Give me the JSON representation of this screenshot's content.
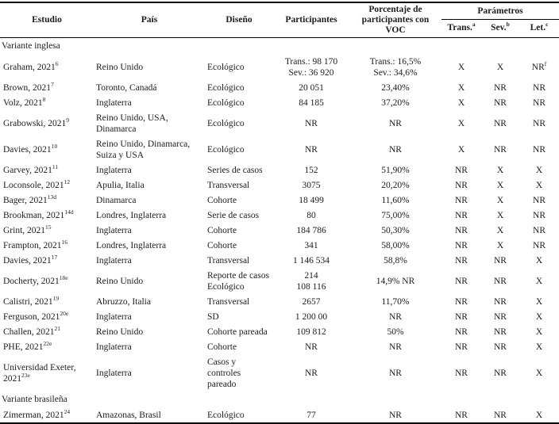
{
  "table": {
    "header": {
      "estudio": "Estudio",
      "pais": "País",
      "diseno": "Diseño",
      "participantes": "Participantes",
      "voc": "Porcentaje de participantes con VOC",
      "parametros": "Parámetros",
      "sub": [
        {
          "label": "Trans.",
          "sup": "a"
        },
        {
          "label": "Sev.",
          "sup": "b"
        },
        {
          "label": "Let.",
          "sup": "c"
        }
      ]
    },
    "sections": [
      {
        "title": "Variante inglesa",
        "rows": [
          {
            "estudio": "Graham, 2021",
            "ref": "6",
            "pais": "Reino Unido",
            "diseno": "Ecológico",
            "participantes": "Trans.: 98 170\nSev.: 36 920",
            "voc": "Trans.: 16,5%\nSev.: 34,6%",
            "trans": "X",
            "sev": "X",
            "let": "NR",
            "let_sup": "f"
          },
          {
            "estudio": "Brown, 2021",
            "ref": "7",
            "pais": "Toronto, Canadá",
            "diseno": "Ecológico",
            "participantes": "20 051",
            "voc": "23,40%",
            "trans": "X",
            "sev": "NR",
            "let": "NR"
          },
          {
            "estudio": "Volz, 2021",
            "ref": "8",
            "pais": "Inglaterra",
            "diseno": "Ecológico",
            "participantes": "84 185",
            "voc": "37,20%",
            "trans": "X",
            "sev": "NR",
            "let": "NR"
          },
          {
            "estudio": "Grabowski, 2021",
            "ref": "9",
            "pais": "Reino Unido, USA,\nDinamarca",
            "diseno": "Ecológico",
            "participantes": "NR",
            "voc": "NR",
            "trans": "X",
            "sev": "NR",
            "let": "NR"
          },
          {
            "estudio": "Davies, 2021",
            "ref": "10",
            "pais": "Reino Unido, Dinamarca,\nSuiza y USA",
            "diseno": "Ecológico",
            "participantes": "NR",
            "voc": "NR",
            "trans": "X",
            "sev": "NR",
            "let": "NR"
          },
          {
            "estudio": "Garvey, 2021",
            "ref": "11",
            "pais": "Inglaterra",
            "diseno": "Series de casos",
            "participantes": "152",
            "voc": "51,90%",
            "trans": "NR",
            "sev": "X",
            "let": "X"
          },
          {
            "estudio": "Loconsole, 2021",
            "ref": "12",
            "pais": "Apulia, Italia",
            "diseno": "Transversal",
            "participantes": "3075",
            "voc": "20,20%",
            "trans": "NR",
            "sev": "X",
            "let": "X"
          },
          {
            "estudio": "Bager, 2021",
            "ref": "13d",
            "pais": "Dinamarca",
            "diseno": "Cohorte",
            "participantes": "18 499",
            "voc": "11,60%",
            "trans": "NR",
            "sev": "X",
            "let": "NR"
          },
          {
            "estudio": "Brookman, 2021",
            "ref": "14d",
            "pais": "Londres, Inglaterra",
            "diseno": "Serie de casos",
            "participantes": "80",
            "voc": "75,00%",
            "trans": "NR",
            "sev": "X",
            "let": "NR"
          },
          {
            "estudio": "Grint, 2021",
            "ref": "15",
            "pais": "Inglaterra",
            "diseno": "Cohorte",
            "participantes": "184 786",
            "voc": "50,30%",
            "trans": "NR",
            "sev": "X",
            "let": "NR"
          },
          {
            "estudio": "Frampton, 2021",
            "ref": "16",
            "pais": "Londres, Inglaterra",
            "diseno": "Cohorte",
            "participantes": "341",
            "voc": "58,00%",
            "trans": "NR",
            "sev": "X",
            "let": "NR"
          },
          {
            "estudio": "Davies, 2021",
            "ref": "17",
            "pais": "Inglaterra",
            "diseno": "Transversal",
            "participantes": "1 146 534",
            "voc": "58,8%",
            "trans": "NR",
            "sev": "NR",
            "let": "X"
          },
          {
            "estudio": "Docherty, 2021",
            "ref": "18e",
            "pais": "Reino Unido",
            "diseno": "Reporte de casos\nEcológico",
            "participantes": "214\n108 116",
            "voc": "14,9% NR",
            "trans": "NR",
            "sev": "NR",
            "let": "X"
          },
          {
            "estudio": "Calistri, 2021",
            "ref": "19",
            "pais": "Abruzzo, Italia",
            "diseno": "Transversal",
            "participantes": "2657",
            "voc": "11,70%",
            "trans": "NR",
            "sev": "NR",
            "let": "X"
          },
          {
            "estudio": "Ferguson, 2021",
            "ref": "20e",
            "pais": "Inglaterra",
            "diseno": "SD",
            "participantes": "1 200 00",
            "voc": "NR",
            "trans": "NR",
            "sev": "NR",
            "let": "X"
          },
          {
            "estudio": "Challen, 2021",
            "ref": "21",
            "pais": "Reino Unido",
            "diseno": "Cohorte pareada",
            "participantes": "109 812",
            "voc": "50%",
            "trans": "NR",
            "sev": "NR",
            "let": "X"
          },
          {
            "estudio": "PHE, 2021",
            "ref": "22e",
            "pais": "Inglaterra",
            "diseno": "Cohorte",
            "participantes": "NR",
            "voc": "NR",
            "trans": "NR",
            "sev": "NR",
            "let": "X"
          },
          {
            "estudio": "Universidad Exeter, 2021",
            "ref": "23e",
            "pais": "Inglaterra",
            "diseno": "Casos y controles\npareado",
            "participantes": "NR",
            "voc": "NR",
            "trans": "NR",
            "sev": "NR",
            "let": "X"
          }
        ]
      },
      {
        "title": "Variante brasileña",
        "rows": [
          {
            "estudio": "Zimerman, 2021",
            "ref": "24",
            "pais": "Amazonas, Brasil",
            "diseno": "Ecológico",
            "participantes": "77",
            "voc": "NR",
            "trans": "NR",
            "sev": "NR",
            "let": "X"
          }
        ]
      }
    ]
  }
}
